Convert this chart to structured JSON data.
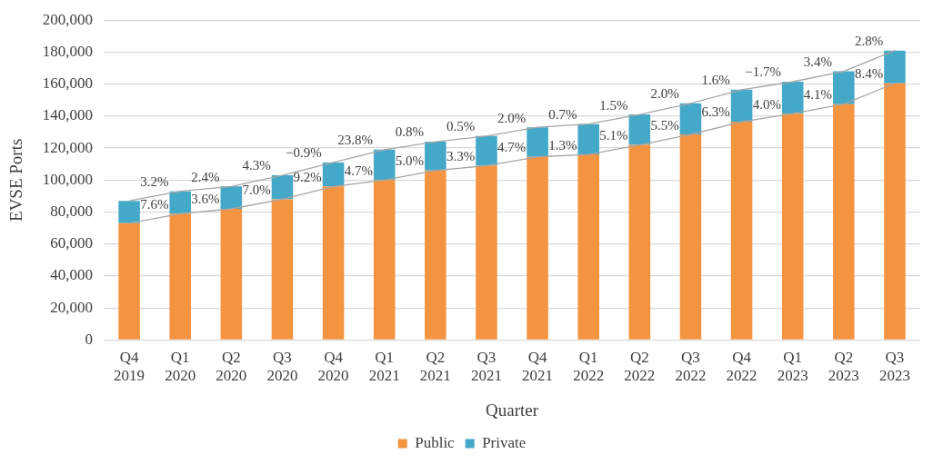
{
  "chart_data": {
    "type": "bar",
    "xlabel": "Quarter",
    "ylabel": "EVSE Ports",
    "categories": [
      "Q4 2019",
      "Q1 2020",
      "Q2 2020",
      "Q3 2020",
      "Q4 2020",
      "Q1 2021",
      "Q2 2021",
      "Q3 2021",
      "Q4 2021",
      "Q1 2022",
      "Q2 2022",
      "Q3 2022",
      "Q4 2022",
      "Q1 2023",
      "Q2 2023",
      "Q3 2023"
    ],
    "stacked": true,
    "series": [
      {
        "name": "Public",
        "color": "#f59440",
        "values": [
          73000,
          79000,
          82000,
          88000,
          96000,
          100000,
          106000,
          109000,
          114500,
          116000,
          122000,
          128500,
          136500,
          141500,
          147500,
          160500
        ]
      },
      {
        "name": "Private",
        "color": "#44a9c8",
        "values": [
          14000,
          14000,
          14000,
          15000,
          15000,
          19000,
          18000,
          18500,
          18500,
          19000,
          19000,
          19500,
          20000,
          20000,
          20500,
          20500
        ]
      },
      {
        "type": "line",
        "color": "#a6a6a6",
        "values": [
          73000,
          79000,
          82000,
          88000,
          96000,
          100000,
          106000,
          109000,
          114500,
          116000,
          122000,
          128500,
          136500,
          141500,
          147500,
          160500
        ]
      },
      {
        "type": "line",
        "color": "#a6a6a6",
        "values": [
          87000,
          93000,
          96000,
          103000,
          111000,
          119000,
          124000,
          127500,
          133000,
          135000,
          141000,
          148000,
          156500,
          161500,
          168000,
          181000
        ]
      }
    ],
    "annotations": [
      {
        "text": "7.6%",
        "x": "Q1 2020",
        "y": 79000
      },
      {
        "text": "3.6%",
        "x": "Q2 2020",
        "y": 82000
      },
      {
        "text": "7.0%",
        "x": "Q3 2020",
        "y": 88000
      },
      {
        "text": "9.2%",
        "x": "Q4 2020",
        "y": 96000
      },
      {
        "text": "4.7%",
        "x": "Q1 2021",
        "y": 100000
      },
      {
        "text": "5.0%",
        "x": "Q2 2021",
        "y": 106000
      },
      {
        "text": "3.3%",
        "x": "Q3 2021",
        "y": 109000
      },
      {
        "text": "4.7%",
        "x": "Q4 2021",
        "y": 114500
      },
      {
        "text": "1.3%",
        "x": "Q1 2022",
        "y": 116000
      },
      {
        "text": "5.1%",
        "x": "Q2 2022",
        "y": 122000
      },
      {
        "text": "5.5%",
        "x": "Q3 2022",
        "y": 128500
      },
      {
        "text": "6.3%",
        "x": "Q4 2022",
        "y": 136500
      },
      {
        "text": "4.0%",
        "x": "Q1 2023",
        "y": 141500
      },
      {
        "text": "4.1%",
        "x": "Q2 2023",
        "y": 147500
      },
      {
        "text": "8.4%",
        "x": "Q3 2023",
        "y": 160500
      },
      {
        "text": "3.2%",
        "x": "Q1 2020",
        "y": 93000
      },
      {
        "text": "2.4%",
        "x": "Q2 2020",
        "y": 96000
      },
      {
        "text": "4.3%",
        "x": "Q3 2020",
        "y": 103000
      },
      {
        "text": "−0.9%",
        "x": "Q4 2020",
        "y": 111000
      },
      {
        "text": "23.8%",
        "x": "Q1 2021",
        "y": 119000
      },
      {
        "text": "0.8%",
        "x": "Q2 2021",
        "y": 124000
      },
      {
        "text": "0.5%",
        "x": "Q3 2021",
        "y": 127500
      },
      {
        "text": "2.0%",
        "x": "Q4 2021",
        "y": 133000
      },
      {
        "text": "0.7%",
        "x": "Q1 2022",
        "y": 135000
      },
      {
        "text": "1.5%",
        "x": "Q2 2022",
        "y": 141000
      },
      {
        "text": "2.0%",
        "x": "Q3 2022",
        "y": 148000
      },
      {
        "text": "1.6%",
        "x": "Q4 2022",
        "y": 156500
      },
      {
        "text": "−1.7%",
        "x": "Q1 2023",
        "y": 161500
      },
      {
        "text": "3.4%",
        "x": "Q2 2023",
        "y": 168000
      },
      {
        "text": "2.8%",
        "x": "Q3 2023",
        "y": 181000
      }
    ],
    "ylim": [
      0,
      200000
    ],
    "yticks": [
      0,
      {
        "value": 20000,
        "label": "20,000"
      },
      {
        "value": 40000,
        "label": "40,000"
      },
      {
        "value": 60000,
        "label": "60,000"
      },
      {
        "value": 80000,
        "label": "80,000"
      },
      {
        "value": 100000,
        "label": "100,000"
      },
      {
        "value": 120000,
        "label": "120,000"
      },
      {
        "value": 140000,
        "label": "140,000"
      },
      {
        "value": 160000,
        "label": "160,000"
      },
      {
        "value": 180000,
        "label": "180,000"
      },
      {
        "value": 200000,
        "label": "200,000"
      }
    ],
    "grid": "y",
    "legend": "bottom"
  }
}
